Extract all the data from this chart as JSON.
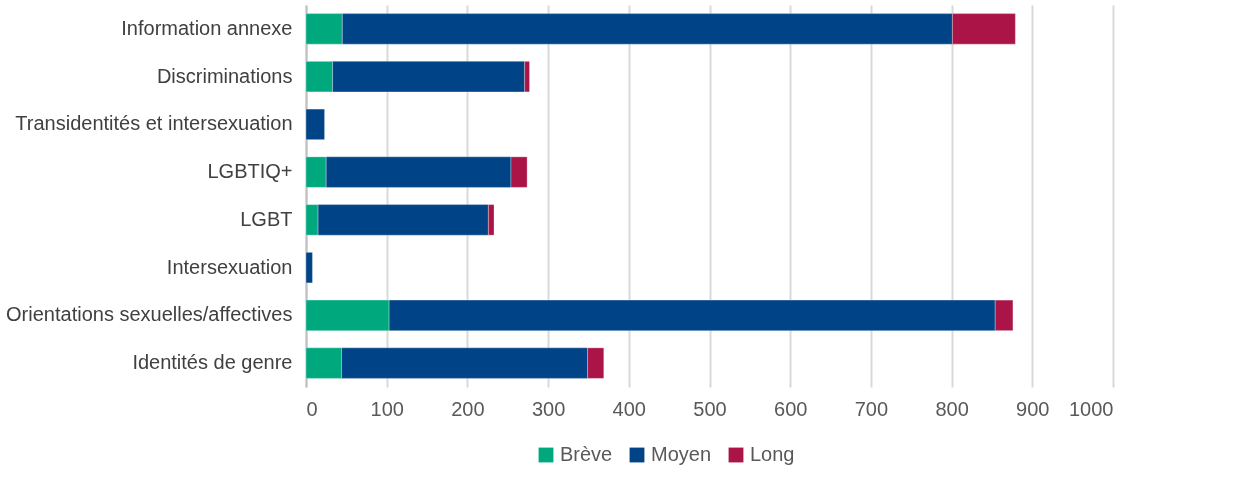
{
  "chart_data": {
    "type": "bar",
    "orientation": "horizontal",
    "stacked": true,
    "categories": [
      "Information annexe",
      "Discriminations",
      "Transidentités et intersexuation",
      "LGBTIQ+",
      "LGBT",
      "Intersexuation",
      "Orientations sexuelles/affectives",
      "Identités de genre"
    ],
    "series": [
      {
        "name": "Brève",
        "color": "#00a87e",
        "values": [
          45,
          33,
          null,
          25,
          15,
          null,
          103,
          44
        ]
      },
      {
        "name": "Moyen",
        "color": "#004387",
        "values": [
          756,
          238,
          23,
          229,
          211,
          8,
          751,
          305
        ]
      },
      {
        "name": "Long",
        "color": "#ab1447",
        "values": [
          78,
          6,
          null,
          20,
          7,
          null,
          22,
          20
        ]
      }
    ],
    "xlim": [
      0,
      1000
    ],
    "xticks": [
      0,
      100,
      200,
      300,
      400,
      500,
      600,
      700,
      800,
      900,
      1000
    ],
    "grid": "x",
    "legend": "bottom"
  }
}
